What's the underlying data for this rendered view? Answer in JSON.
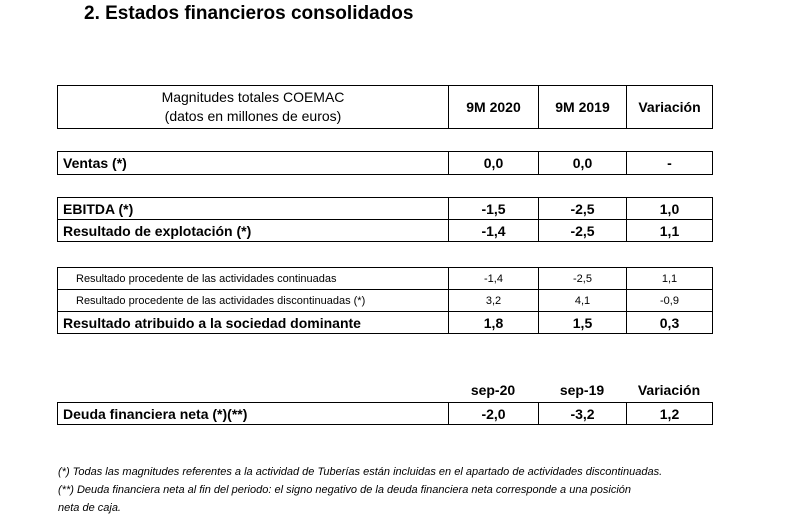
{
  "title": "2.  Estados financieros consolidados",
  "header": {
    "label_line1": "Magnitudes totales COEMAC",
    "label_line2": "(datos en millones de euros)",
    "col1": "9M 2020",
    "col2": "9M 2019",
    "col3": "Variación"
  },
  "ventas": {
    "label": "Ventas (*)",
    "v1": "0,0",
    "v2": "0,0",
    "v3": "-"
  },
  "ebitda": {
    "label": "EBITDA (*)",
    "v1": "-1,5",
    "v2": "-2,5",
    "v3": "1,0"
  },
  "explotacion": {
    "label": "Resultado de explotación (*)",
    "v1": "-1,4",
    "v2": "-2,5",
    "v3": "1,1"
  },
  "continuadas": {
    "label": "Resultado procedente de las actividades continuadas",
    "v1": "-1,4",
    "v2": "-2,5",
    "v3": "1,1"
  },
  "discontinuadas": {
    "label": "Resultado procedente de las actividades discontinuadas (*)",
    "v1": "3,2",
    "v2": "4,1",
    "v3": "-0,9"
  },
  "atribuido": {
    "label": "Resultado atribuido a la sociedad dominante",
    "v1": "1,8",
    "v2": "1,5",
    "v3": "0,3"
  },
  "deuda_header": {
    "col1": "sep-20",
    "col2": "sep-19",
    "col3": "Variación"
  },
  "deuda": {
    "label": "Deuda financiera neta (*)(**)",
    "v1": "-2,0",
    "v2": "-3,2",
    "v3": "1,2"
  },
  "notes": {
    "note1": "(*) Todas las magnitudes referentes a la actividad de Tuberías están incluidas en el apartado de actividades discontinuadas.",
    "note2_line1": "(**) Deuda financiera neta al fin del periodo: el signo negativo de la deuda financiera neta corresponde a una posición",
    "note2_line2": "neta de caja."
  }
}
